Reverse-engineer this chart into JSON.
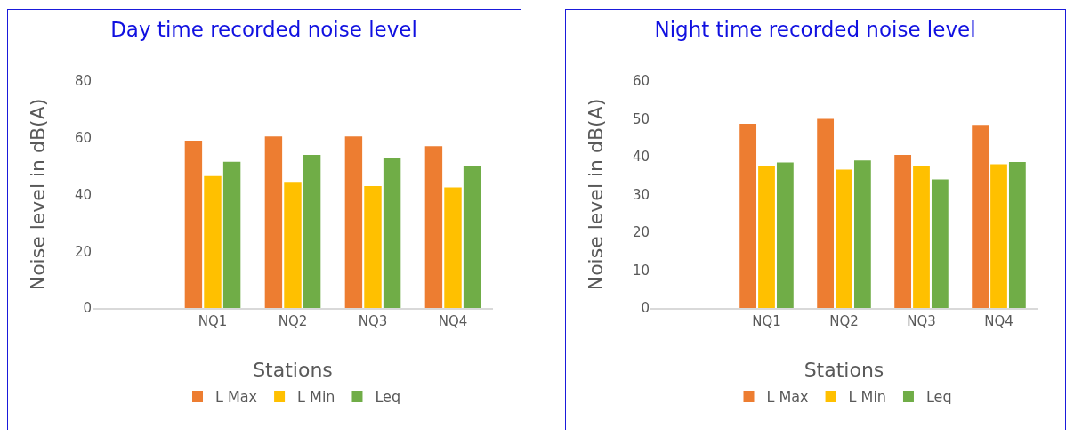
{
  "chart_data": [
    {
      "type": "bar",
      "title": "Day time recorded noise level",
      "xlabel": "Stations",
      "ylabel": "Noise level in dB(A)",
      "categories": [
        null,
        "NQ1",
        "NQ2",
        "NQ3",
        "NQ4"
      ],
      "ylim": [
        0,
        80
      ],
      "yticks": [
        0,
        20,
        40,
        60,
        80
      ],
      "grid": false,
      "legend": "bottom",
      "series": [
        {
          "name": "L Max",
          "color": "#ed7d31",
          "values": [
            null,
            59,
            60.5,
            60.5,
            57
          ]
        },
        {
          "name": "L Min",
          "color": "#ffc000",
          "values": [
            null,
            46.5,
            44.5,
            43,
            42.5
          ]
        },
        {
          "name": "Leq",
          "color": "#70ad47",
          "values": [
            null,
            51.5,
            54,
            53,
            50
          ]
        }
      ]
    },
    {
      "type": "bar",
      "title": "Night time recorded noise level",
      "xlabel": "Stations",
      "ylabel": "Noise level in dB(A)",
      "categories": [
        null,
        "NQ1",
        "NQ2",
        "NQ3",
        "NQ4"
      ],
      "ylim": [
        0,
        60
      ],
      "yticks": [
        0,
        10,
        20,
        30,
        40,
        50,
        60
      ],
      "grid": false,
      "legend": "bottom",
      "series": [
        {
          "name": "L Max",
          "color": "#ed7d31",
          "values": [
            null,
            48.7,
            50,
            40.5,
            48.4
          ]
        },
        {
          "name": "L Min",
          "color": "#ffc000",
          "values": [
            null,
            37.6,
            36.6,
            37.6,
            38
          ]
        },
        {
          "name": "Leq",
          "color": "#70ad47",
          "values": [
            null,
            38.5,
            39,
            34,
            38.6
          ]
        }
      ]
    }
  ]
}
